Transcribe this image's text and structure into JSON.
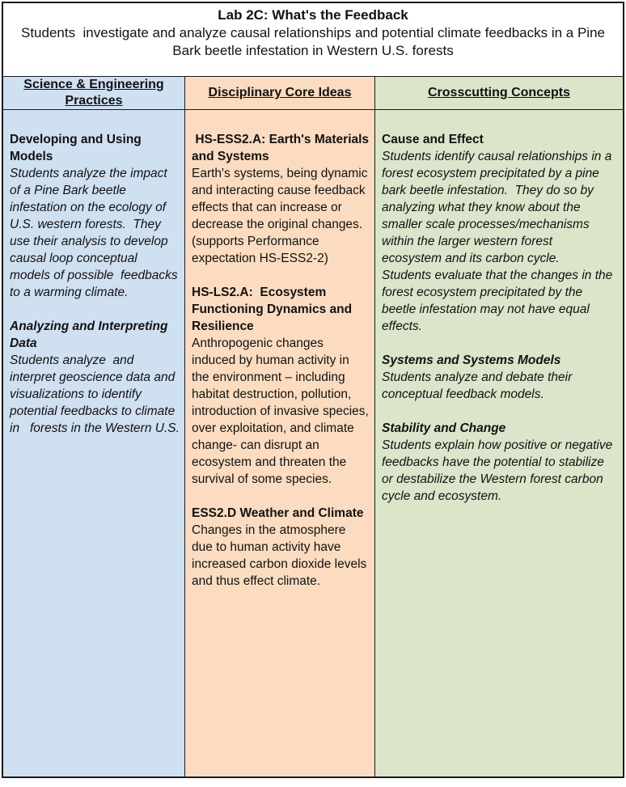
{
  "page": {
    "title": "Lab 2C: What's the Feedback",
    "subtitle": "Students  investigate and analyze causal relationships and potential climate feedbacks in a Pine Bark beetle infestation in Western U.S. forests"
  },
  "colors": {
    "practices_bg": "#cfe0f1",
    "core_ideas_bg": "#fbdcc0",
    "concepts_bg": "#dbe5c9",
    "border": "#1a1a1a"
  },
  "columns": [
    {
      "header": "Science & Engineering Practices",
      "blocks": [
        {
          "heading": "Developing and Using Models",
          "paragraphs": [
            "Students analyze the impact of a Pine Bark beetle infestation on the ecology of U.S. western forests.  They use their analysis to develop causal loop conceptual  models of possible  feedbacks  to a warming climate."
          ]
        },
        {
          "heading": "Analyzing and Interpreting Data",
          "paragraphs": [
            "Students analyze  and interpret geoscience data and visualizations to identify potential feedbacks to climate in   forests in the Western U.S."
          ]
        }
      ]
    },
    {
      "header": "Disciplinary Core Ideas",
      "blocks": [
        {
          "heading": " HS-ESS2.A: Earth's Materials and Systems",
          "paragraphs": [
            "Earth's systems, being dynamic and interacting cause feedback effects that can increase or decrease the original changes. (supports Performance expectation HS-ESS2-2)"
          ]
        },
        {
          "heading": "HS-LS2.A:  Ecosystem Functioning Dynamics and Resilience",
          "paragraphs": [
            "Anthropogenic changes induced by human activity in the environment – including habitat destruction, pollution, introduction of invasive species, over exploitation, and climate change- can disrupt an ecosystem and threaten the survival of some species."
          ]
        },
        {
          "heading": "ESS2.D Weather and Climate",
          "paragraphs": [
            "Changes in the atmosphere due to human activity have increased carbon dioxide levels and thus effect climate."
          ]
        }
      ]
    },
    {
      "header": "Crosscutting Concepts",
      "blocks": [
        {
          "heading": "Cause and Effect",
          "paragraphs": [
            "Students identify causal relationships in a forest ecosystem precipitated by a pine bark beetle infestation.  They do so by analyzing what they know about the smaller scale processes/mechanisms within the larger western forest  ecosystem and its carbon cycle.",
            "Students evaluate that the changes in the forest ecosystem precipitated by the beetle infestation may not have equal effects."
          ]
        },
        {
          "heading": "Systems and Systems Models",
          "paragraphs": [
            "Students analyze and debate their conceptual feedback models."
          ]
        },
        {
          "heading": "Stability and Change",
          "paragraphs": [
            "Students explain how positive or negative feedbacks have the potential to stabilize or destabilize the Western forest carbon cycle and ecosystem."
          ]
        }
      ]
    }
  ]
}
